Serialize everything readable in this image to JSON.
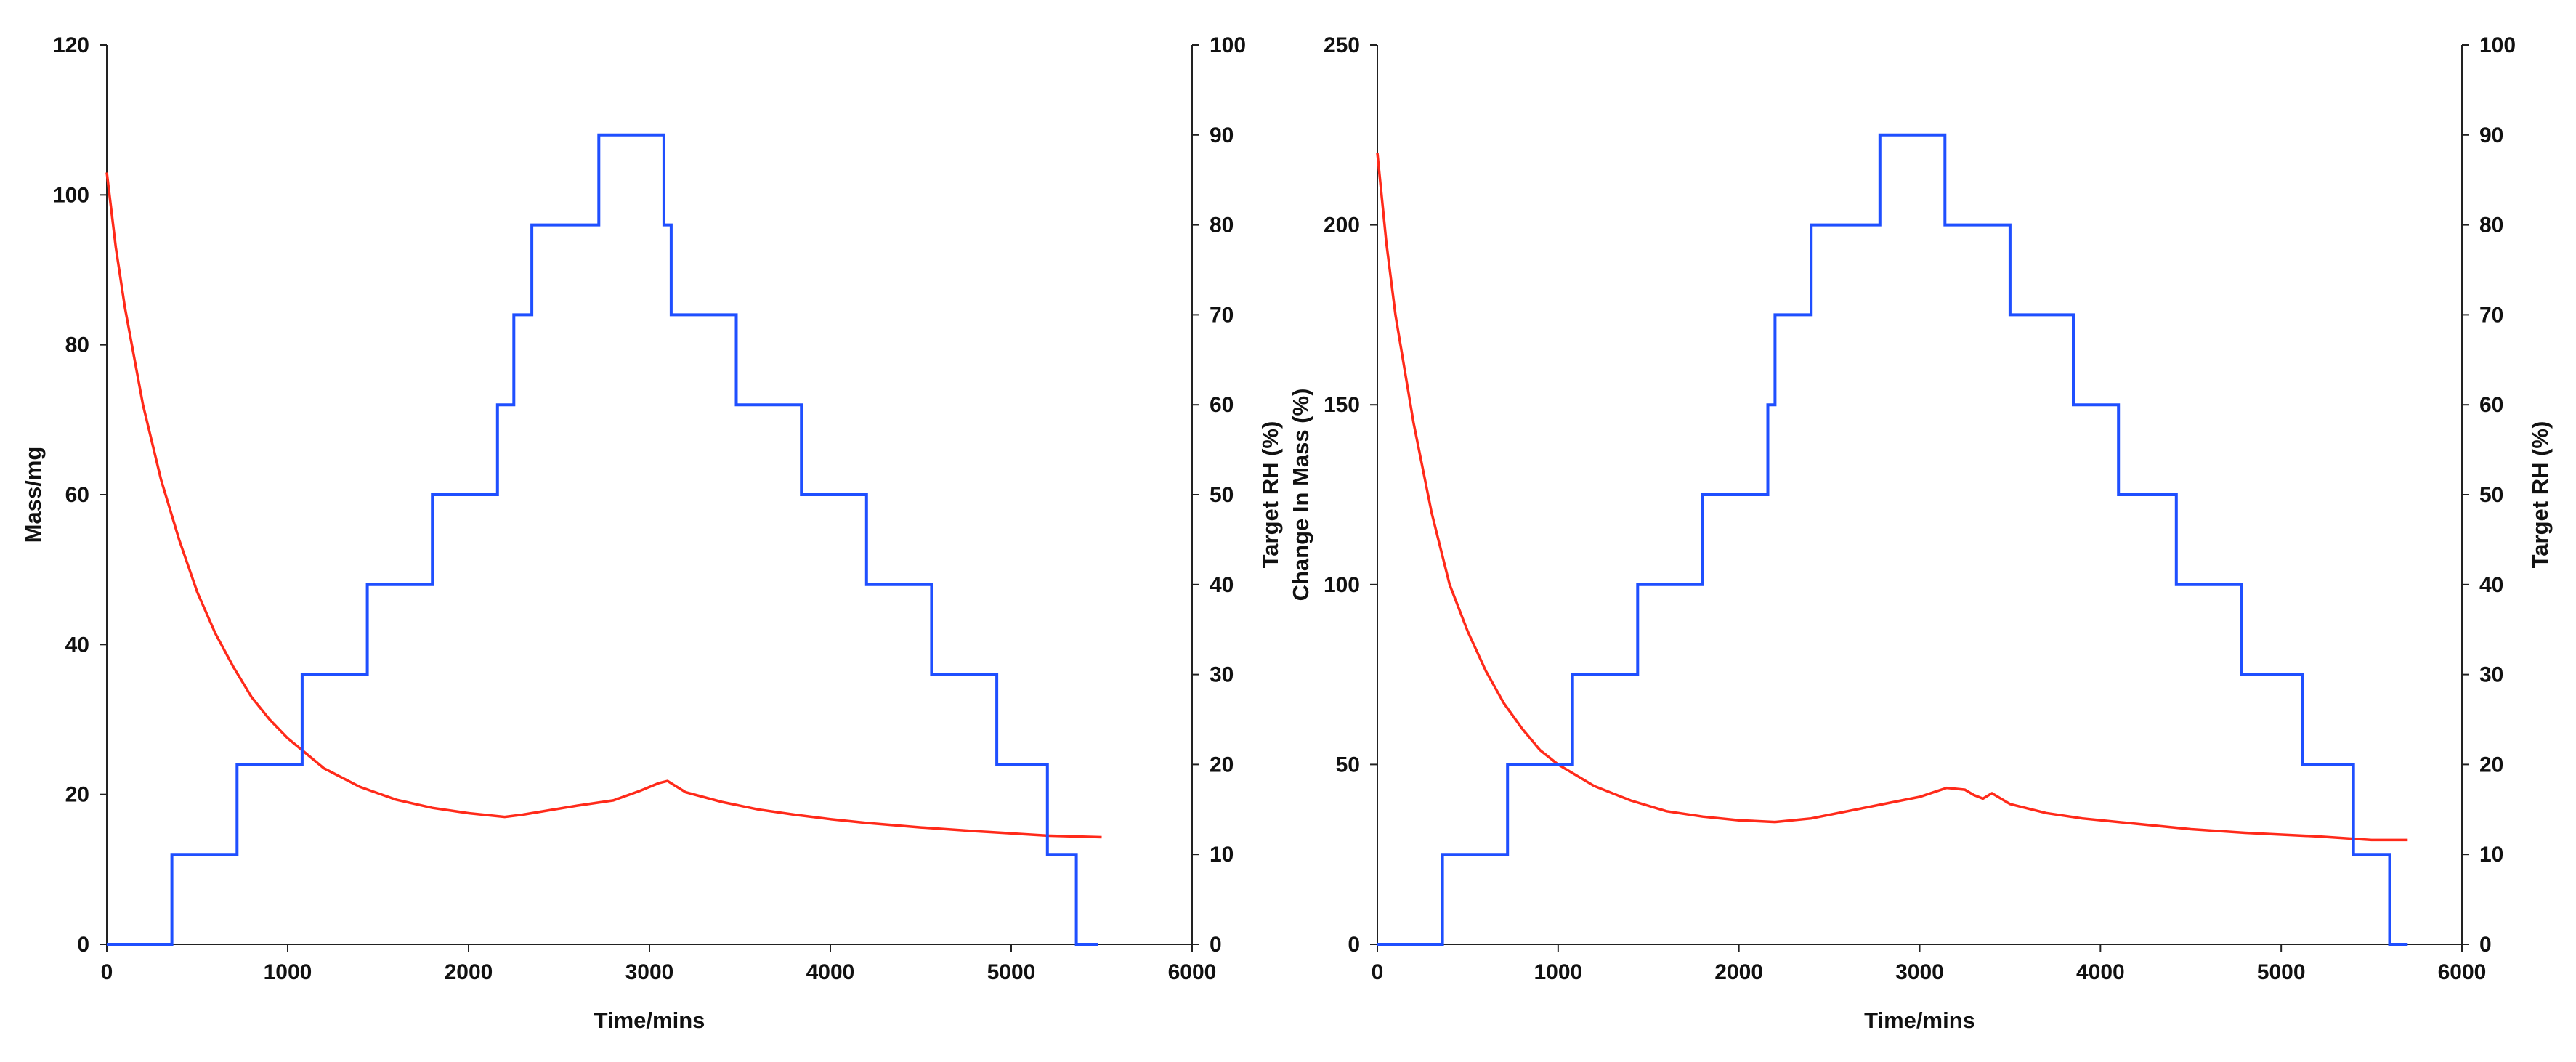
{
  "colors": {
    "mass": "#ff2a1a",
    "rh": "#1f4fff",
    "axis": "#222222"
  },
  "chart_data": [
    {
      "type": "line",
      "title": "",
      "xlabel": "Time/mins",
      "ylabel": "Mass/mg",
      "y2label": "Target RH (%)",
      "xlim": [
        0,
        6000
      ],
      "ylim": [
        0,
        120
      ],
      "y2lim": [
        0,
        100
      ],
      "xticks": [
        "0",
        "1000",
        "2000",
        "3000",
        "4000",
        "5000",
        "6000"
      ],
      "yticks": [
        "0",
        "20",
        "40",
        "60",
        "80",
        "100",
        "120"
      ],
      "y2ticks": [
        "0",
        "10",
        "20",
        "30",
        "40",
        "50",
        "60",
        "70",
        "80",
        "90",
        "100"
      ],
      "grid": false,
      "series": [
        {
          "axis": "left",
          "color": "#ff2a1a",
          "x": [
            0,
            50,
            100,
            200,
            300,
            400,
            500,
            600,
            700,
            800,
            900,
            1000,
            1100,
            1200,
            1400,
            1600,
            1800,
            2000,
            2200,
            2300,
            2400,
            2600,
            2800,
            2950,
            3050,
            3100,
            3200,
            3400,
            3600,
            3800,
            4000,
            4200,
            4500,
            4800,
            5000,
            5200,
            5500
          ],
          "values": [
            103,
            93,
            85,
            72,
            62,
            54,
            47,
            41.5,
            37,
            33,
            30,
            27.5,
            25.5,
            23.5,
            21,
            19.3,
            18.2,
            17.5,
            17,
            17.3,
            17.7,
            18.5,
            19.2,
            20.5,
            21.5,
            21.8,
            20.3,
            19,
            18,
            17.3,
            16.7,
            16.2,
            15.6,
            15.1,
            14.8,
            14.5,
            14.3
          ]
        },
        {
          "axis": "right",
          "step": true,
          "color": "#1f4fff",
          "x": [
            0,
            360,
            360,
            720,
            720,
            1080,
            1080,
            1440,
            1440,
            1800,
            1800,
            2160,
            2160,
            2250,
            2250,
            2350,
            2350,
            2720,
            2720,
            3080,
            3080,
            3120,
            3120,
            3480,
            3480,
            3840,
            3840,
            4200,
            4200,
            4560,
            4560,
            4920,
            4920,
            5200,
            5200,
            5360,
            5360,
            5480
          ],
          "values": [
            0,
            0,
            10,
            10,
            20,
            20,
            30,
            30,
            40,
            40,
            50,
            50,
            60,
            60,
            70,
            70,
            80,
            80,
            90,
            90,
            80,
            80,
            70,
            70,
            60,
            60,
            50,
            50,
            40,
            40,
            30,
            30,
            20,
            20,
            10,
            10,
            0,
            0
          ]
        }
      ]
    },
    {
      "type": "line",
      "title": "",
      "xlabel": "Time/mins",
      "ylabel": "Change In Mass (%)",
      "y2label": "Target RH (%)",
      "xlim": [
        0,
        6000
      ],
      "ylim": [
        0,
        250
      ],
      "y2lim": [
        0,
        100
      ],
      "xticks": [
        "0",
        "1000",
        "2000",
        "3000",
        "4000",
        "5000",
        "6000"
      ],
      "yticks": [
        "0",
        "50",
        "100",
        "150",
        "200",
        "250"
      ],
      "y2ticks": [
        "0",
        "10",
        "20",
        "30",
        "40",
        "50",
        "60",
        "70",
        "80",
        "90",
        "100"
      ],
      "grid": false,
      "series": [
        {
          "axis": "left",
          "color": "#ff2a1a",
          "x": [
            0,
            50,
            100,
            200,
            300,
            400,
            500,
            600,
            700,
            800,
            900,
            1000,
            1100,
            1200,
            1400,
            1600,
            1800,
            2000,
            2200,
            2400,
            2600,
            2800,
            3000,
            3150,
            3250,
            3300,
            3350,
            3400,
            3500,
            3700,
            3900,
            4200,
            4500,
            4800,
            5200,
            5500,
            5700
          ],
          "values": [
            220,
            195,
            175,
            145,
            120,
            100,
            87,
            76,
            67,
            60,
            54,
            50,
            47,
            44,
            40,
            37,
            35.5,
            34.5,
            34,
            35,
            37,
            39,
            41,
            43.5,
            43,
            41.5,
            40.5,
            42,
            39,
            36.5,
            35,
            33.5,
            32,
            31,
            30,
            29,
            29
          ]
        },
        {
          "axis": "right",
          "step": true,
          "color": "#1f4fff",
          "x": [
            0,
            360,
            360,
            720,
            720,
            1080,
            1080,
            1440,
            1440,
            1800,
            1800,
            2160,
            2160,
            2200,
            2200,
            2400,
            2400,
            2780,
            2780,
            3140,
            3140,
            3500,
            3500,
            3850,
            3850,
            4100,
            4100,
            4420,
            4420,
            4780,
            4780,
            5120,
            5120,
            5400,
            5400,
            5600,
            5600,
            5700
          ],
          "values": [
            0,
            0,
            10,
            10,
            20,
            20,
            30,
            30,
            40,
            40,
            50,
            50,
            60,
            60,
            70,
            70,
            80,
            80,
            90,
            90,
            80,
            80,
            70,
            70,
            60,
            60,
            50,
            50,
            40,
            40,
            30,
            30,
            20,
            20,
            10,
            10,
            0,
            0
          ]
        }
      ]
    }
  ]
}
